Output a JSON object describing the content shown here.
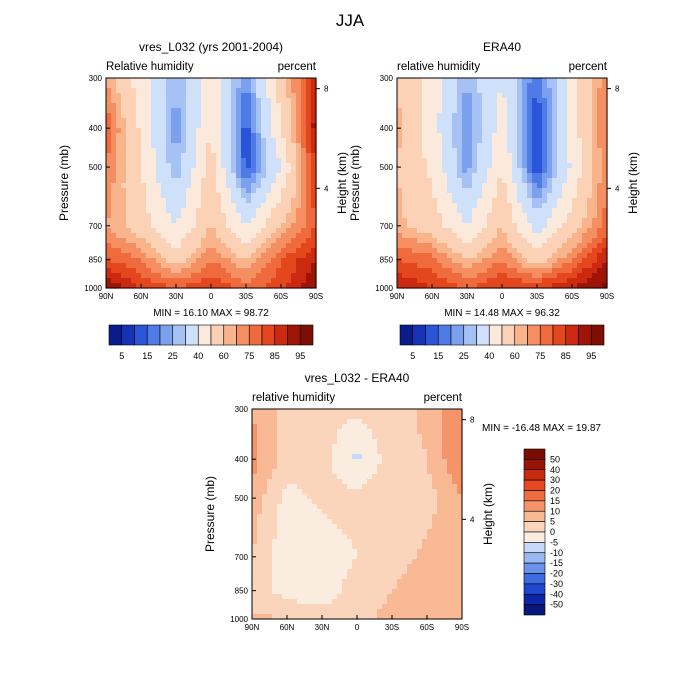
{
  "figure_title": "JJA",
  "colors": {
    "abs_scale": [
      "#0a1c8c",
      "#1533b4",
      "#2a55d8",
      "#4f7be6",
      "#7aa0ee",
      "#a6c2f4",
      "#cfe0fb",
      "#fbe9dc",
      "#fbd2b6",
      "#f9b48c",
      "#f58f61",
      "#ef6a3c",
      "#e4471d",
      "#cc2a10",
      "#9e1405",
      "#7e0d04"
    ],
    "diff_scale": [
      "#07177a",
      "#0c26a8",
      "#1f48cf",
      "#3d6be0",
      "#6b92ea",
      "#9cb8f2",
      "#c7d9f9",
      "#fbece0",
      "#fbd5bb",
      "#f9b994",
      "#f59468",
      "#ef6c41",
      "#e54822",
      "#c92a12",
      "#991405",
      "#7a0c04"
    ]
  },
  "chart_data": [
    {
      "type": "contour",
      "id": "model",
      "title": "vres_L032 (yrs 2001-2004)",
      "left_label": "Relative humidity",
      "right_label": "percent",
      "xlabel": "",
      "ylabel": "Pressure (mb)",
      "ylabel_right": "Height (km)",
      "x_ticks": [
        "90N",
        "60N",
        "30N",
        "0",
        "30S",
        "60S",
        "90S"
      ],
      "x_values": [
        90,
        60,
        30,
        0,
        -30,
        -60,
        -90
      ],
      "y_ticks": [
        "300",
        "400",
        "500",
        "700",
        "850",
        "1000"
      ],
      "y_values": [
        300,
        400,
        500,
        700,
        850,
        1000
      ],
      "y_right_ticks": [
        "8",
        "4"
      ],
      "y_right_values": [
        8,
        4
      ],
      "stats": "MIN =  16.10   MAX =  98.72",
      "min": 16.1,
      "max": 98.72,
      "field": {
        "lat": [
          90,
          60,
          30,
          0,
          -30,
          -60,
          -90
        ],
        "plev": [
          300,
          400,
          500,
          700,
          850,
          1000
        ],
        "values": [
          [
            65,
            45,
            25,
            48,
            20,
            55,
            85
          ],
          [
            75,
            48,
            22,
            50,
            12,
            50,
            88
          ],
          [
            70,
            50,
            25,
            55,
            12,
            40,
            80
          ],
          [
            65,
            55,
            40,
            60,
            40,
            60,
            75
          ],
          [
            75,
            70,
            55,
            70,
            60,
            75,
            85
          ],
          [
            90,
            80,
            75,
            80,
            72,
            78,
            90
          ]
        ]
      }
    },
    {
      "type": "contour",
      "id": "obs",
      "title": "ERA40",
      "left_label": "relative humidity",
      "right_label": "percent",
      "xlabel": "",
      "ylabel": "Pressure (mb)",
      "ylabel_right": "Height (km)",
      "x_ticks": [
        "90N",
        "60N",
        "30N",
        "0",
        "30S",
        "60S",
        "90S"
      ],
      "x_values": [
        90,
        60,
        30,
        0,
        -30,
        -60,
        -90
      ],
      "y_ticks": [
        "300",
        "400",
        "500",
        "700",
        "850",
        "1000"
      ],
      "y_values": [
        300,
        400,
        500,
        700,
        850,
        1000
      ],
      "y_right_ticks": [
        "8",
        "4"
      ],
      "y_right_values": [
        8,
        4
      ],
      "stats": "MIN =  14.48   MAX =  96.32",
      "min": 14.48,
      "max": 96.32,
      "field": {
        "lat": [
          90,
          60,
          30,
          0,
          -30,
          -60,
          -90
        ],
        "plev": [
          300,
          400,
          500,
          700,
          850,
          1000
        ],
        "values": [
          [
            60,
            45,
            25,
            40,
            15,
            45,
            70
          ],
          [
            62,
            45,
            20,
            45,
            10,
            45,
            72
          ],
          [
            60,
            48,
            22,
            50,
            10,
            42,
            70
          ],
          [
            62,
            55,
            40,
            60,
            35,
            55,
            72
          ],
          [
            75,
            72,
            60,
            70,
            55,
            70,
            85
          ],
          [
            85,
            80,
            75,
            80,
            80,
            85,
            92
          ]
        ]
      }
    },
    {
      "type": "contour",
      "id": "difference",
      "title": "vres_L032 - ERA40",
      "left_label": "relative humidity",
      "right_label": "percent",
      "xlabel": "",
      "ylabel": "Pressure (mb)",
      "ylabel_right": "Height (km)",
      "x_ticks": [
        "90N",
        "60N",
        "30N",
        "0",
        "30S",
        "60S",
        "90S"
      ],
      "x_values": [
        90,
        60,
        30,
        0,
        -30,
        -60,
        -90
      ],
      "y_ticks": [
        "300",
        "400",
        "500",
        "700",
        "850",
        "1000"
      ],
      "y_values": [
        300,
        400,
        500,
        700,
        850,
        1000
      ],
      "y_right_ticks": [
        "8",
        "4"
      ],
      "y_right_values": [
        8,
        4
      ],
      "stats": "MIN = -16.48  MAX =  19.87",
      "min": -16.48,
      "max": 19.87,
      "field": {
        "lat": [
          90,
          60,
          30,
          0,
          -30,
          -60,
          -90
        ],
        "plev": [
          300,
          400,
          500,
          700,
          850,
          1000
        ],
        "values": [
          [
            10,
            3,
            2,
            1,
            3,
            6,
            14
          ],
          [
            12,
            3,
            2,
            -6,
            3,
            5,
            15
          ],
          [
            8,
            -2,
            1,
            2,
            4,
            3,
            10
          ],
          [
            5,
            -4,
            -3,
            0,
            3,
            6,
            8
          ],
          [
            2,
            -2,
            -4,
            3,
            5,
            8,
            9
          ],
          [
            6,
            5,
            3,
            4,
            6,
            8,
            10
          ]
        ]
      }
    }
  ],
  "colorbars": [
    {
      "id": "abs",
      "orientation": "horizontal",
      "levels": [
        5,
        10,
        15,
        20,
        25,
        30,
        40,
        50,
        60,
        65,
        70,
        75,
        80,
        85,
        90,
        95
      ],
      "labels": [
        "5",
        "15",
        "25",
        "40",
        "60",
        "75",
        "85",
        "95"
      ]
    },
    {
      "id": "diff",
      "orientation": "vertical",
      "levels": [
        -50,
        -40,
        -30,
        -20,
        -15,
        -10,
        -5,
        0,
        5,
        10,
        15,
        20,
        30,
        40,
        50
      ],
      "labels": [
        "50",
        "40",
        "30",
        "20",
        "15",
        "10",
        "5",
        "0",
        "-5",
        "-10",
        "-15",
        "-20",
        "-30",
        "-40",
        "-50"
      ]
    }
  ]
}
